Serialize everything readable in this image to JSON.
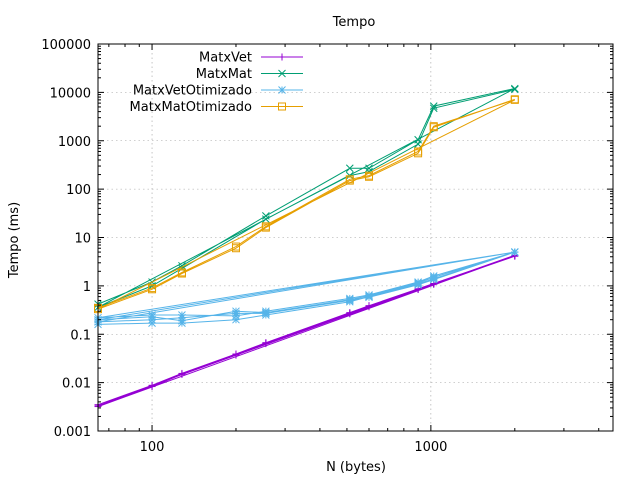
{
  "chart_data": {
    "type": "line",
    "title": "Tempo",
    "xlabel": "N (bytes)",
    "ylabel": "Tempo (ms)",
    "x_scale": "log",
    "y_scale": "log",
    "xlim": [
      64,
      4500
    ],
    "ylim": [
      0.001,
      100000
    ],
    "x_ticks": [
      {
        "value": 100,
        "label": "100"
      },
      {
        "value": 1000,
        "label": "1000"
      }
    ],
    "y_ticks": [
      {
        "value": 0.001,
        "label": "0.001"
      },
      {
        "value": 0.01,
        "label": "0.01"
      },
      {
        "value": 0.1,
        "label": "0.1"
      },
      {
        "value": 1,
        "label": "1"
      },
      {
        "value": 10,
        "label": "10"
      },
      {
        "value": 100,
        "label": "100"
      },
      {
        "value": 1000,
        "label": "1000"
      },
      {
        "value": 10000,
        "label": "10000"
      },
      {
        "value": 100000,
        "label": "100000"
      }
    ],
    "grid": true,
    "legend_position": "top-left",
    "series": [
      {
        "name": "MatxVet",
        "color": "#9400d3",
        "marker": "plus",
        "points": [
          [
            64,
            0.0033
          ],
          [
            100,
            0.0085
          ],
          [
            128,
            0.015
          ],
          [
            200,
            0.038
          ],
          [
            256,
            0.065
          ],
          [
            512,
            0.27
          ],
          [
            600,
            0.38
          ],
          [
            900,
            0.85
          ],
          [
            1024,
            1.1
          ],
          [
            2000,
            4.3
          ],
          [
            64,
            0.0035
          ],
          [
            100,
            0.0088
          ],
          [
            128,
            0.0155
          ],
          [
            200,
            0.039
          ],
          [
            256,
            0.067
          ],
          [
            512,
            0.28
          ],
          [
            600,
            0.39
          ],
          [
            900,
            0.87
          ],
          [
            1024,
            1.12
          ],
          [
            2000,
            4.2
          ],
          [
            64,
            0.0032
          ],
          [
            100,
            0.0083
          ],
          [
            128,
            0.0148
          ],
          [
            200,
            0.037
          ],
          [
            256,
            0.064
          ],
          [
            512,
            0.265
          ],
          [
            600,
            0.37
          ],
          [
            900,
            0.84
          ],
          [
            1024,
            1.08
          ],
          [
            2000,
            4.1
          ]
        ]
      },
      {
        "name": "MatxMat",
        "color": "#009e73",
        "marker": "cross",
        "points": [
          [
            64,
            0.42
          ],
          [
            100,
            1.2
          ],
          [
            128,
            2.6
          ],
          [
            256,
            28
          ],
          [
            512,
            270
          ],
          [
            600,
            270
          ],
          [
            900,
            1050
          ],
          [
            1024,
            5200
          ],
          [
            2000,
            12000
          ],
          [
            64,
            0.36
          ],
          [
            100,
            1.0
          ],
          [
            128,
            2.3
          ],
          [
            256,
            24
          ],
          [
            512,
            190
          ],
          [
            600,
            230
          ],
          [
            900,
            850
          ],
          [
            1024,
            4700
          ],
          [
            2000,
            11500
          ]
        ]
      },
      {
        "name": "MatxVetOtimizado",
        "color": "#56b4e9",
        "marker": "star",
        "points": [
          [
            64,
            0.16
          ],
          [
            100,
            0.17
          ],
          [
            128,
            0.17
          ],
          [
            200,
            0.2
          ],
          [
            256,
            0.25
          ],
          [
            512,
            0.47
          ],
          [
            600,
            0.6
          ],
          [
            900,
            1.1
          ],
          [
            1024,
            1.4
          ],
          [
            2000,
            5.0
          ],
          [
            64,
            0.2
          ],
          [
            100,
            0.23
          ],
          [
            128,
            0.19
          ],
          [
            200,
            0.3
          ],
          [
            256,
            0.28
          ],
          [
            512,
            0.52
          ],
          [
            600,
            0.62
          ],
          [
            900,
            1.15
          ],
          [
            1024,
            1.5
          ],
          [
            2000,
            5.0
          ],
          [
            64,
            0.22
          ],
          [
            100,
            0.25
          ],
          [
            128,
            0.25
          ],
          [
            200,
            0.24
          ],
          [
            256,
            0.3
          ],
          [
            512,
            0.55
          ],
          [
            600,
            0.65
          ],
          [
            900,
            1.2
          ],
          [
            1024,
            1.6
          ],
          [
            2000,
            5.0
          ],
          [
            64,
            0.18
          ],
          [
            100,
            0.2
          ],
          [
            128,
            0.22
          ],
          [
            200,
            0.27
          ],
          [
            256,
            0.27
          ],
          [
            512,
            0.5
          ],
          [
            600,
            0.58
          ],
          [
            900,
            1.05
          ],
          [
            1024,
            1.35
          ],
          [
            2000,
            5.0
          ]
        ]
      },
      {
        "name": "MatxMatOtimizado",
        "color": "#e69f00",
        "marker": "square",
        "points": [
          [
            64,
            0.35
          ],
          [
            100,
            0.9
          ],
          [
            128,
            1.9
          ],
          [
            200,
            6.5
          ],
          [
            256,
            17
          ],
          [
            512,
            160
          ],
          [
            600,
            190
          ],
          [
            900,
            600
          ],
          [
            1024,
            2000
          ],
          [
            2000,
            7000
          ],
          [
            64,
            0.33
          ],
          [
            100,
            0.85
          ],
          [
            128,
            1.8
          ],
          [
            200,
            6.0
          ],
          [
            256,
            16
          ],
          [
            512,
            150
          ],
          [
            600,
            180
          ],
          [
            900,
            550
          ],
          [
            1024,
            1900
          ],
          [
            2000,
            7200
          ]
        ]
      }
    ]
  }
}
